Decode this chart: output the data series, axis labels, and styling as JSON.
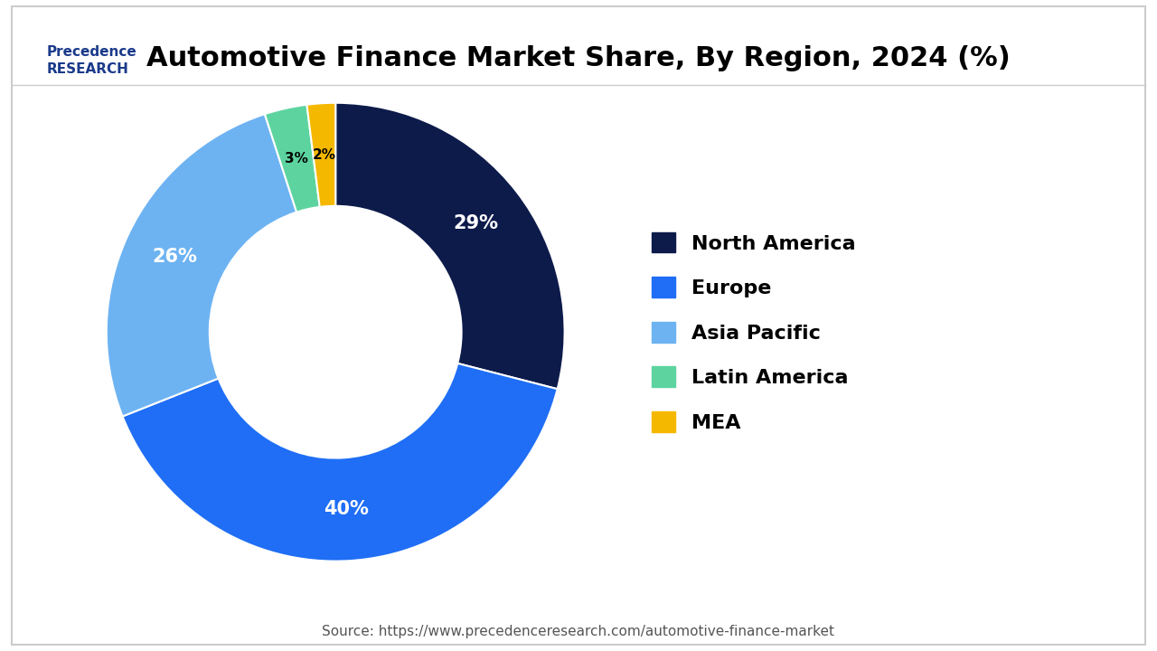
{
  "title": "Automotive Finance Market Share, By Region, 2024 (%)",
  "title_fontsize": 22,
  "title_fontweight": "bold",
  "slices": [
    29,
    40,
    26,
    3,
    2
  ],
  "labels": [
    "North America",
    "Europe",
    "Asia Pacific",
    "Latin America",
    "MEA"
  ],
  "colors": [
    "#0d1b4b",
    "#1f6ef5",
    "#6db3f2",
    "#5dd4a0",
    "#f5b800"
  ],
  "pct_labels": [
    "29%",
    "40%",
    "26%",
    "3%",
    "2%"
  ],
  "pct_label_colors": [
    "white",
    "white",
    "white",
    "black",
    "black"
  ],
  "source_text": "Source: https://www.precedenceresearch.com/automotive-finance-market",
  "source_fontsize": 11,
  "legend_fontsize": 16,
  "background_color": "#ffffff",
  "border_color": "#cccccc",
  "startangle": 90,
  "donut_ratio": 0.55
}
